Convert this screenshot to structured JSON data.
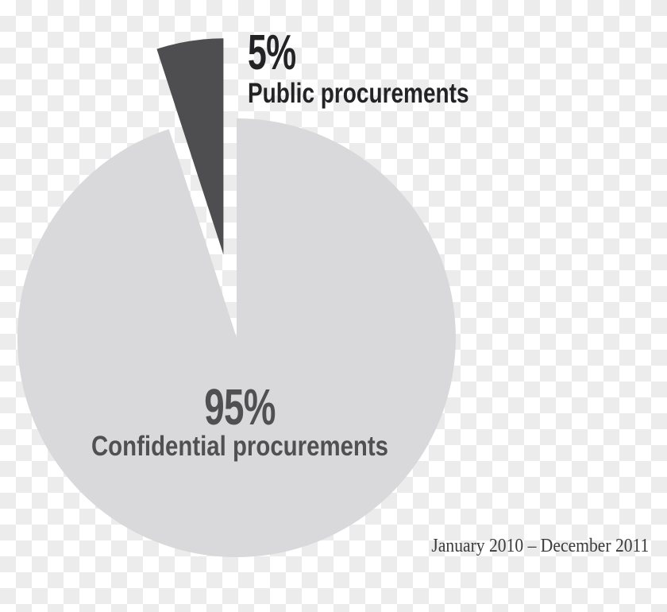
{
  "chart_data": {
    "type": "pie",
    "title": "",
    "slices": [
      {
        "label": "Public procurements",
        "pct_label": "5%",
        "value": 5,
        "color": "#4e4e50",
        "label_color": "#232224",
        "exploded": true
      },
      {
        "label": "Confidential procurements",
        "pct_label": "95%",
        "value": 95,
        "color": "#d9d9db",
        "label_color": "#505052",
        "exploded": false
      }
    ],
    "start_angle_deg": -18,
    "direction": "clockwise",
    "legend_position": "none",
    "caption": "January 2010 – December 2011",
    "background": "transparency-checkerboard"
  },
  "colors": {
    "checkerboard_light": "#ffffff",
    "checkerboard_dark": "#ececec",
    "slice_dark": "#4e4e50",
    "slice_light": "#d9d9db",
    "caption_text": "#3b3b3b"
  }
}
